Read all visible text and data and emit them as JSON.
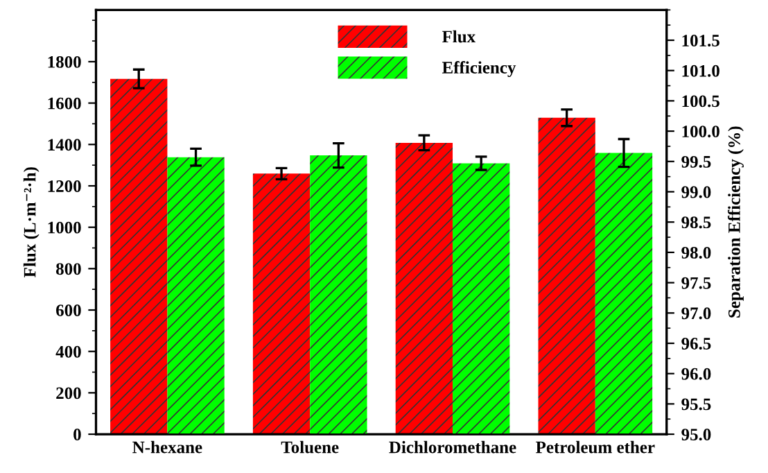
{
  "chart_data": {
    "type": "bar",
    "categories": [
      "N-hexane",
      "Toluene",
      "Dichloromethane",
      "Petroleum ether"
    ],
    "ylabel": "Flux (L·m⁻²·h)",
    "y2label": "Separation Efficiency (%)",
    "series": [
      {
        "name": "Flux",
        "color": "#ff0000",
        "values": [
          1717,
          1259,
          1408,
          1529
        ],
        "errors": [
          45,
          27,
          36,
          40
        ]
      },
      {
        "name": "Efficiency",
        "color": "#00ff00",
        "axis": "y2",
        "values": [
          99.57,
          99.6,
          99.47,
          99.64
        ],
        "errors": [
          0.14,
          0.2,
          0.11,
          0.23
        ]
      }
    ],
    "ylim": [
      0,
      2050
    ],
    "yticks": [
      0,
      200,
      400,
      600,
      800,
      1000,
      1200,
      1400,
      1600,
      1800
    ],
    "y2lim": [
      95.0,
      102.0
    ],
    "y2ticks": [
      {
        "value": 95.0,
        "label": "95.0"
      },
      {
        "value": 95.5,
        "label": "95.5"
      },
      {
        "value": 96.0,
        "label": "96.0"
      },
      {
        "value": 96.5,
        "label": "96.5"
      },
      {
        "value": 97.0,
        "label": "97.0"
      },
      {
        "value": 97.5,
        "label": "97.5"
      },
      {
        "value": 98.0,
        "label": "98.0"
      },
      {
        "value": 98.5,
        "label": "98.5"
      },
      {
        "value": 99.0,
        "label": "99.0"
      },
      {
        "value": 99.5,
        "label": "99.5"
      },
      {
        "value": 100.0,
        "label": "100.0"
      },
      {
        "value": 100.5,
        "label": "100.5"
      },
      {
        "value": 101.0,
        "label": "101.0"
      },
      {
        "value": 101.5,
        "label": "101.5"
      }
    ],
    "legend": "top",
    "grid": false
  }
}
